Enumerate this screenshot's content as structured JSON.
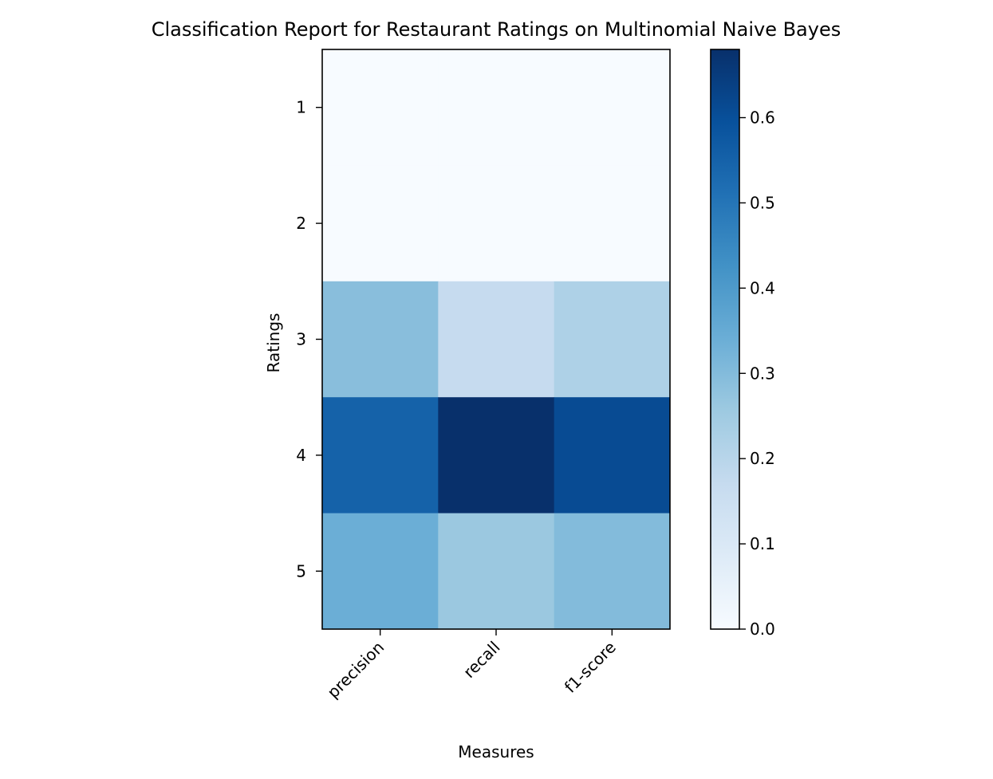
{
  "chart_data": {
    "type": "heatmap",
    "title": "Classification Report for Restaurant Ratings on Multinomial Naive Bayes",
    "xlabel": "Measures",
    "ylabel": "Ratings",
    "x_categories": [
      "precision",
      "recall",
      "f1-score"
    ],
    "y_categories": [
      "1",
      "2",
      "3",
      "4",
      "5"
    ],
    "values": [
      [
        0.0,
        0.0,
        0.0
      ],
      [
        0.0,
        0.0,
        0.0
      ],
      [
        0.29,
        0.17,
        0.22
      ],
      [
        0.55,
        0.68,
        0.61
      ],
      [
        0.34,
        0.26,
        0.3
      ]
    ],
    "colorbar": {
      "min": 0.0,
      "max": 0.68,
      "ticks": [
        0.0,
        0.1,
        0.2,
        0.3,
        0.4,
        0.5,
        0.6
      ],
      "tick_labels": [
        "0.0",
        "0.1",
        "0.2",
        "0.3",
        "0.4",
        "0.5",
        "0.6"
      ],
      "colormap": "Blues"
    },
    "grid": false
  }
}
